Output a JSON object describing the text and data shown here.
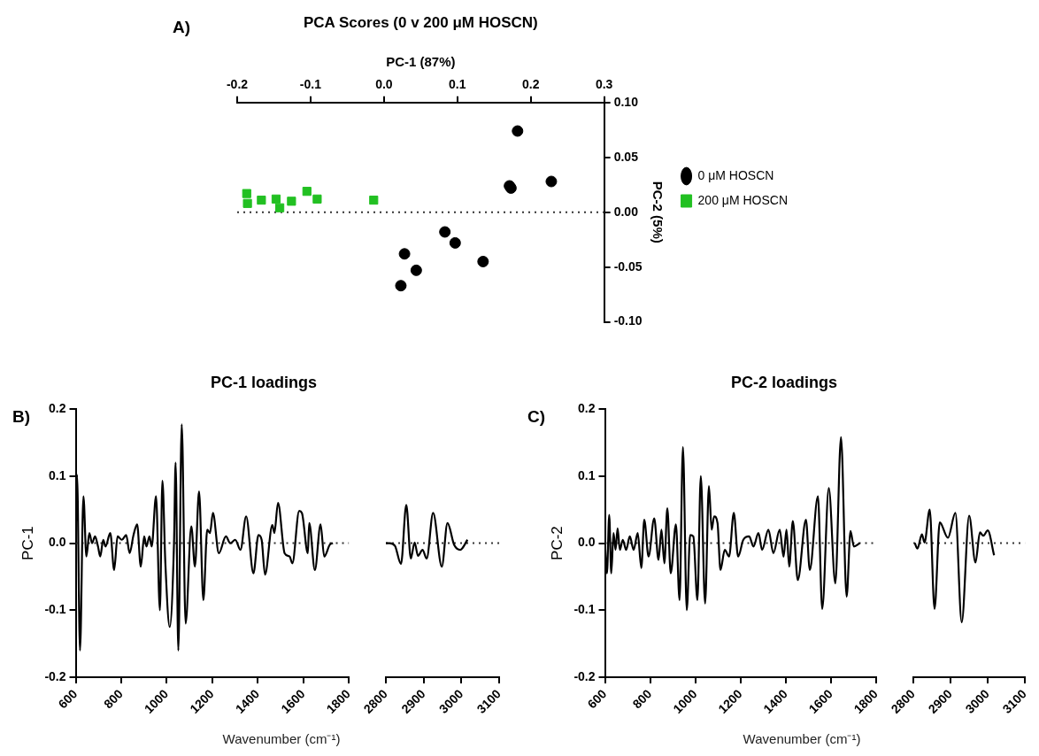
{
  "chart_data": [
    {
      "type": "scatter",
      "title": "PCA Scores (0 v 200 μM HOSCN)",
      "xlabel": "PC-1 (87%)",
      "ylabel": "PC-2 (5%)",
      "legend": "right",
      "annotations": [
        "A)"
      ],
      "xlim": [
        -0.2,
        0.3
      ],
      "xticks": [
        -0.2,
        -0.1,
        {
          "value": 0,
          "label": "0.0"
        },
        0.1,
        0.2,
        0.3
      ],
      "ylim": [
        -0.1,
        0.1
      ],
      "yticks": [
        {
          "value": 0.1,
          "label": "0.10"
        },
        {
          "value": 0.05,
          "label": "0.05"
        },
        {
          "value": 0,
          "label": "0.00"
        },
        {
          "value": -0.05,
          "label": "-0.05"
        },
        {
          "value": -0.1,
          "label": "-0.10"
        }
      ],
      "ref_lines": [
        {
          "axis": "y",
          "value": 0,
          "line_style": "dotted",
          "color": "#333333"
        }
      ],
      "series": [
        {
          "name": "0 μM HOSCN",
          "color": "#000000",
          "marker": "circle",
          "x": [
            0.182,
            0.228,
            0.171,
            0.173,
            0.083,
            0.097,
            0.135,
            0.028,
            0.044,
            0.023
          ],
          "values": [
            0.074,
            0.028,
            0.024,
            0.022,
            -0.018,
            -0.028,
            -0.045,
            -0.038,
            -0.053,
            -0.067
          ]
        },
        {
          "name": "200 μM HOSCN",
          "color": "#22c022",
          "marker": "square",
          "x": [
            -0.187,
            -0.186,
            -0.167,
            -0.147,
            -0.142,
            -0.126,
            -0.105,
            -0.091,
            -0.014
          ],
          "values": [
            0.017,
            0.008,
            0.011,
            0.012,
            0.004,
            0.01,
            0.019,
            0.012,
            0.011
          ]
        }
      ]
    },
    {
      "type": "line",
      "title": "PC-1 loadings",
      "xlabel": "Wavenumber (cm⁻¹)",
      "ylabel": "PC-1",
      "annotations": [
        "B)"
      ],
      "marker": "none",
      "color": "#000000",
      "xlim": [
        600,
        1800
      ],
      "xticks": [
        600,
        800,
        1000,
        1200,
        1400,
        1600,
        1800
      ],
      "ylim": [
        -0.2,
        0.2
      ],
      "yticks": [
        0.2,
        0.1,
        {
          "value": 0,
          "label": "0.0"
        },
        -0.1,
        -0.2
      ],
      "ref_lines": [
        {
          "axis": "y",
          "value": 0,
          "line_style": "dotted",
          "color": "#333333"
        }
      ],
      "x": [
        600,
        606,
        619,
        634,
        647,
        660,
        672,
        685,
        698,
        708,
        721,
        731,
        752,
        769,
        784,
        803,
        822,
        837,
        854,
        870,
        886,
        901,
        911,
        924,
        934,
        953,
        970,
        981,
        994,
        1013,
        1032,
        1039,
        1051,
        1066,
        1083,
        1108,
        1124,
        1142,
        1161,
        1178,
        1190,
        1203,
        1229,
        1260,
        1279,
        1301,
        1324,
        1349,
        1381,
        1403,
        1417,
        1432,
        1464,
        1473,
        1489,
        1518,
        1540,
        1552,
        1582,
        1594,
        1620,
        1626,
        1651,
        1676,
        1692,
        1717,
        1730
      ],
      "values": [
        0,
        0.102,
        -0.16,
        0.07,
        -0.02,
        0.015,
        0,
        0.01,
        -0.005,
        -0.02,
        0.005,
        -0.005,
        0.015,
        -0.04,
        0.01,
        0.005,
        0.012,
        -0.015,
        0.012,
        0.028,
        -0.035,
        0.01,
        -0.005,
        0.01,
        -0.005,
        0.07,
        -0.1,
        0.093,
        -0.03,
        -0.125,
        0,
        0.12,
        -0.16,
        0.177,
        -0.12,
        0.025,
        -0.035,
        0.077,
        -0.085,
        0.02,
        0.015,
        0.045,
        -0.015,
        0.01,
        0,
        0.005,
        -0.01,
        0.04,
        -0.045,
        0.012,
        0.005,
        -0.047,
        0.027,
        0.015,
        0.06,
        -0.015,
        -0.02,
        -0.03,
        0.048,
        0.045,
        -0.015,
        0.03,
        -0.04,
        0.028,
        -0.02,
        -0.002,
        0
      ]
    },
    {
      "type": "line",
      "tick_labels": "x",
      "marker": "none",
      "color": "#000000",
      "xlim": [
        2800,
        3100
      ],
      "xticks": [
        2800,
        2900,
        3000,
        3100
      ],
      "ylim": [
        -0.2,
        0.2
      ],
      "ref_lines": [
        {
          "axis": "y",
          "value": 0,
          "line_style": "dotted",
          "color": "#333333"
        }
      ],
      "x": [
        2800,
        2810,
        2824,
        2840,
        2854,
        2866,
        2876,
        2885,
        2897,
        2908,
        2925,
        2948,
        2963,
        2981,
        2997,
        3016
      ],
      "values": [
        0,
        0,
        -0.004,
        -0.031,
        0.057,
        -0.023,
        0.001,
        -0.019,
        -0.01,
        -0.023,
        0.045,
        -0.035,
        0.03,
        -0.003,
        -0.01,
        0.005
      ]
    },
    {
      "type": "line",
      "title": "PC-2 loadings",
      "xlabel": "Wavenumber (cm⁻¹)",
      "ylabel": "PC-2",
      "annotations": [
        "C)"
      ],
      "marker": "none",
      "color": "#000000",
      "xlim": [
        600,
        1800
      ],
      "xticks": [
        600,
        800,
        1000,
        1200,
        1400,
        1600,
        1800
      ],
      "ylim": [
        -0.2,
        0.2
      ],
      "yticks": [
        0.2,
        0.1,
        {
          "value": 0,
          "label": "0.0"
        },
        -0.1,
        -0.2
      ],
      "ref_lines": [
        {
          "axis": "y",
          "value": 0,
          "line_style": "dotted",
          "color": "#333333"
        }
      ],
      "x": [
        600,
        609,
        619,
        628,
        638,
        647,
        656,
        666,
        679,
        694,
        710,
        727,
        745,
        761,
        774,
        793,
        818,
        837,
        850,
        863,
        876,
        891,
        914,
        930,
        945,
        962,
        977,
        991,
        1009,
        1024,
        1043,
        1060,
        1072,
        1083,
        1098,
        1111,
        1130,
        1149,
        1170,
        1189,
        1212,
        1238,
        1257,
        1279,
        1295,
        1323,
        1345,
        1373,
        1390,
        1403,
        1415,
        1431,
        1453,
        1489,
        1506,
        1542,
        1561,
        1590,
        1619,
        1644,
        1669,
        1686,
        1701,
        1727
      ],
      "values": [
        0,
        -0.045,
        0.042,
        -0.045,
        0.015,
        -0.01,
        0.022,
        -0.01,
        0.005,
        -0.01,
        0.01,
        -0.01,
        0.015,
        -0.037,
        0.035,
        -0.02,
        0.037,
        -0.025,
        0.02,
        -0.03,
        0.052,
        -0.045,
        0.028,
        -0.085,
        0.143,
        -0.1,
        0.012,
        0.01,
        -0.085,
        0.1,
        -0.09,
        0.085,
        0.02,
        0.04,
        0.03,
        -0.04,
        -0.01,
        -0.02,
        0.045,
        -0.02,
        0.005,
        0.01,
        -0.005,
        0.015,
        -0.01,
        0.02,
        -0.015,
        0.02,
        -0.02,
        0.02,
        -0.035,
        0.033,
        -0.055,
        0.035,
        -0.04,
        0.07,
        -0.098,
        0.082,
        -0.06,
        0.158,
        -0.08,
        0.018,
        -0.005,
        0
      ]
    },
    {
      "type": "line",
      "tick_labels": "x",
      "marker": "none",
      "color": "#000000",
      "xlim": [
        2800,
        3100
      ],
      "xticks": [
        2800,
        2900,
        3000,
        3100
      ],
      "ylim": [
        -0.2,
        0.2
      ],
      "ref_lines": [
        {
          "axis": "y",
          "value": 0,
          "line_style": "dotted",
          "color": "#333333"
        }
      ],
      "x": [
        2804,
        2811,
        2823,
        2830,
        2844,
        2857,
        2871,
        2893,
        2913,
        2930,
        2950,
        2967,
        2979,
        2988,
        3000,
        3017
      ],
      "values": [
        0,
        -0.008,
        0.013,
        0.001,
        0.05,
        -0.098,
        0.031,
        0.008,
        0.045,
        -0.118,
        0.041,
        -0.029,
        0.016,
        0.011,
        0.019,
        -0.018
      ]
    }
  ]
}
